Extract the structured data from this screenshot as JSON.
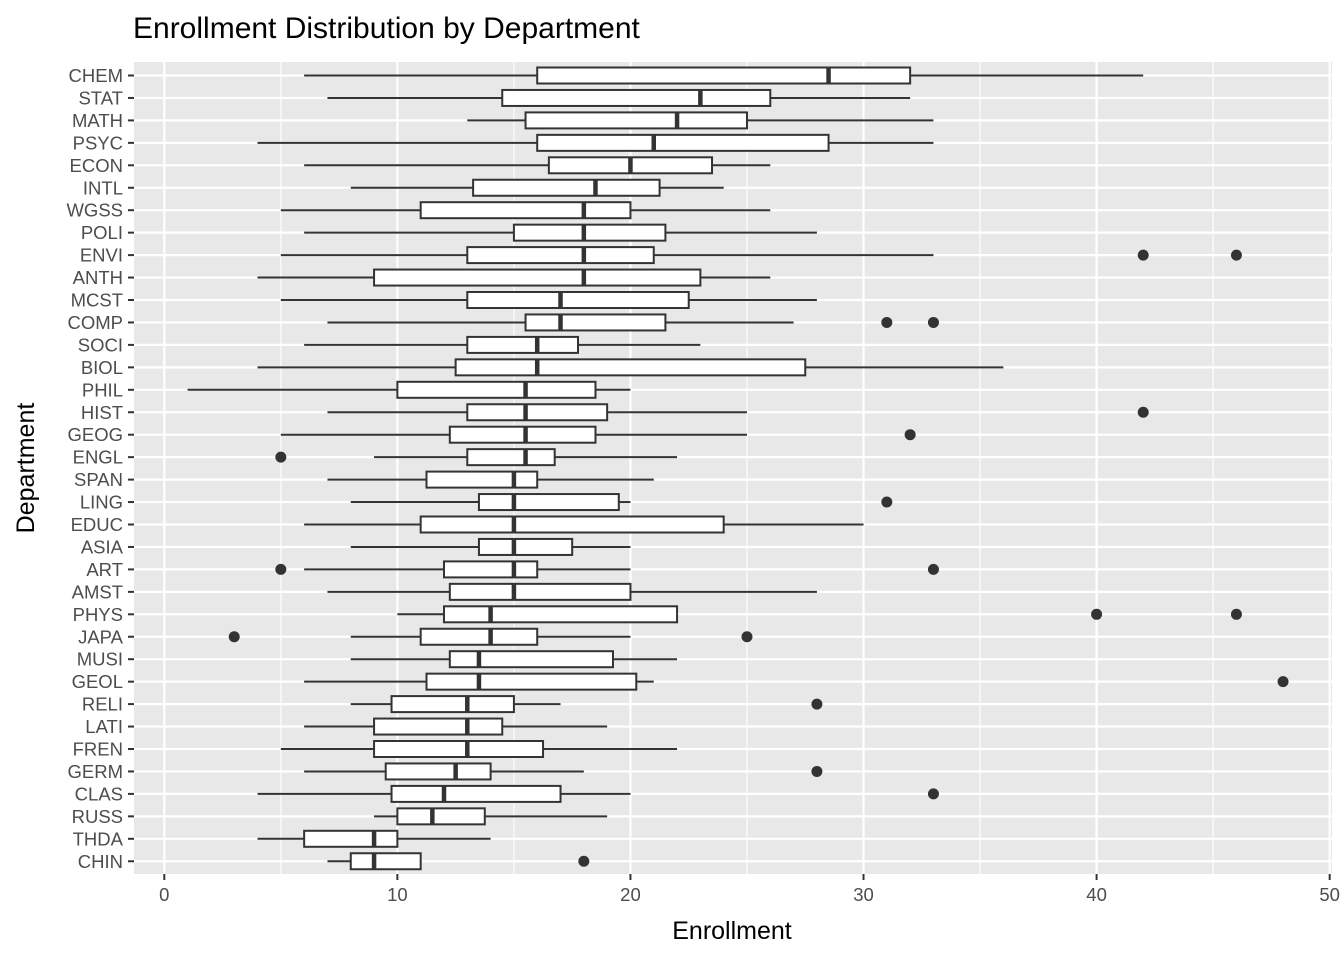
{
  "chart_data": {
    "type": "boxplot",
    "orientation": "horizontal",
    "title": "Enrollment Distribution by Department",
    "xlabel": "Enrollment",
    "ylabel": "Department",
    "xlim": [
      -1.3,
      50.1
    ],
    "x_ticks": [
      0,
      10,
      20,
      30,
      40,
      50
    ],
    "grid": true,
    "panel_background": "#e8e8e8",
    "grid_color": "#ffffff",
    "box_fill": "#ffffff",
    "line_color": "#333333",
    "categories": [
      "CHEM",
      "STAT",
      "MATH",
      "PSYC",
      "ECON",
      "INTL",
      "WGSS",
      "POLI",
      "ENVI",
      "ANTH",
      "MCST",
      "COMP",
      "SOCI",
      "BIOL",
      "PHIL",
      "HIST",
      "GEOG",
      "ENGL",
      "SPAN",
      "LING",
      "EDUC",
      "ASIA",
      "ART",
      "AMST",
      "PHYS",
      "JAPA",
      "MUSI",
      "GEOL",
      "RELI",
      "LATI",
      "FREN",
      "GERM",
      "CLAS",
      "RUSS",
      "THDA",
      "CHIN"
    ],
    "series": [
      {
        "category": "CHEM",
        "min": 6,
        "q1": 16,
        "median": 28.5,
        "q3": 32,
        "max": 42,
        "outliers": []
      },
      {
        "category": "STAT",
        "min": 7,
        "q1": 14.5,
        "median": 23,
        "q3": 26,
        "max": 32,
        "outliers": []
      },
      {
        "category": "MATH",
        "min": 13,
        "q1": 15.5,
        "median": 22,
        "q3": 25,
        "max": 33,
        "outliers": []
      },
      {
        "category": "PSYC",
        "min": 4,
        "q1": 16,
        "median": 21,
        "q3": 28.5,
        "max": 33,
        "outliers": []
      },
      {
        "category": "ECON",
        "min": 6,
        "q1": 16.5,
        "median": 20,
        "q3": 23.5,
        "max": 26,
        "outliers": []
      },
      {
        "category": "INTL",
        "min": 8,
        "q1": 13.25,
        "median": 18.5,
        "q3": 21.25,
        "max": 24,
        "outliers": []
      },
      {
        "category": "WGSS",
        "min": 5,
        "q1": 11,
        "median": 18,
        "q3": 20,
        "max": 26,
        "outliers": []
      },
      {
        "category": "POLI",
        "min": 6,
        "q1": 15,
        "median": 18,
        "q3": 21.5,
        "max": 28,
        "outliers": []
      },
      {
        "category": "ENVI",
        "min": 5,
        "q1": 13,
        "median": 18,
        "q3": 21,
        "max": 33,
        "outliers": [
          42,
          46
        ]
      },
      {
        "category": "ANTH",
        "min": 4,
        "q1": 9,
        "median": 18,
        "q3": 23,
        "max": 26,
        "outliers": []
      },
      {
        "category": "MCST",
        "min": 5,
        "q1": 13,
        "median": 17,
        "q3": 22.5,
        "max": 28,
        "outliers": []
      },
      {
        "category": "COMP",
        "min": 7,
        "q1": 15.5,
        "median": 17,
        "q3": 21.5,
        "max": 27,
        "outliers": [
          31,
          33
        ]
      },
      {
        "category": "SOCI",
        "min": 6,
        "q1": 13,
        "median": 16,
        "q3": 17.75,
        "max": 23,
        "outliers": []
      },
      {
        "category": "BIOL",
        "min": 4,
        "q1": 12.5,
        "median": 16,
        "q3": 27.5,
        "max": 36,
        "outliers": []
      },
      {
        "category": "PHIL",
        "min": 1,
        "q1": 10,
        "median": 15.5,
        "q3": 18.5,
        "max": 20,
        "outliers": []
      },
      {
        "category": "HIST",
        "min": 7,
        "q1": 13,
        "median": 15.5,
        "q3": 19,
        "max": 25,
        "outliers": [
          42
        ]
      },
      {
        "category": "GEOG",
        "min": 5,
        "q1": 12.25,
        "median": 15.5,
        "q3": 18.5,
        "max": 25,
        "outliers": [
          32
        ]
      },
      {
        "category": "ENGL",
        "min": 9,
        "q1": 13,
        "median": 15.5,
        "q3": 16.75,
        "max": 22,
        "outliers": [
          5
        ]
      },
      {
        "category": "SPAN",
        "min": 7,
        "q1": 11.25,
        "median": 15,
        "q3": 16,
        "max": 21,
        "outliers": []
      },
      {
        "category": "LING",
        "min": 8,
        "q1": 13.5,
        "median": 15,
        "q3": 19.5,
        "max": 20,
        "outliers": [
          31
        ]
      },
      {
        "category": "EDUC",
        "min": 6,
        "q1": 11,
        "median": 15,
        "q3": 24,
        "max": 30,
        "outliers": []
      },
      {
        "category": "ASIA",
        "min": 8,
        "q1": 13.5,
        "median": 15,
        "q3": 17.5,
        "max": 20,
        "outliers": []
      },
      {
        "category": "ART",
        "min": 6,
        "q1": 12,
        "median": 15,
        "q3": 16,
        "max": 20,
        "outliers": [
          5,
          33
        ]
      },
      {
        "category": "AMST",
        "min": 7,
        "q1": 12.25,
        "median": 15,
        "q3": 20,
        "max": 28,
        "outliers": []
      },
      {
        "category": "PHYS",
        "min": 10,
        "q1": 12,
        "median": 14,
        "q3": 22,
        "max": 22,
        "outliers": [
          40,
          46
        ]
      },
      {
        "category": "JAPA",
        "min": 8,
        "q1": 11,
        "median": 14,
        "q3": 16,
        "max": 20,
        "outliers": [
          3,
          25
        ]
      },
      {
        "category": "MUSI",
        "min": 8,
        "q1": 12.25,
        "median": 13.5,
        "q3": 19.25,
        "max": 22,
        "outliers": []
      },
      {
        "category": "GEOL",
        "min": 6,
        "q1": 11.25,
        "median": 13.5,
        "q3": 20.25,
        "max": 21,
        "outliers": [
          48
        ]
      },
      {
        "category": "RELI",
        "min": 8,
        "q1": 9.75,
        "median": 13,
        "q3": 15,
        "max": 17,
        "outliers": [
          28
        ]
      },
      {
        "category": "LATI",
        "min": 6,
        "q1": 9,
        "median": 13,
        "q3": 14.5,
        "max": 19,
        "outliers": []
      },
      {
        "category": "FREN",
        "min": 5,
        "q1": 9,
        "median": 13,
        "q3": 16.25,
        "max": 22,
        "outliers": []
      },
      {
        "category": "GERM",
        "min": 6,
        "q1": 9.5,
        "median": 12.5,
        "q3": 14,
        "max": 18,
        "outliers": [
          28
        ]
      },
      {
        "category": "CLAS",
        "min": 4,
        "q1": 9.75,
        "median": 12,
        "q3": 17,
        "max": 20,
        "outliers": [
          33
        ]
      },
      {
        "category": "RUSS",
        "min": 9,
        "q1": 10,
        "median": 11.5,
        "q3": 13.75,
        "max": 19,
        "outliers": []
      },
      {
        "category": "THDA",
        "min": 4,
        "q1": 6,
        "median": 9,
        "q3": 10,
        "max": 14,
        "outliers": []
      },
      {
        "category": "CHIN",
        "min": 7,
        "q1": 8,
        "median": 9,
        "q3": 11,
        "max": 11,
        "outliers": [
          18
        ]
      }
    ]
  }
}
